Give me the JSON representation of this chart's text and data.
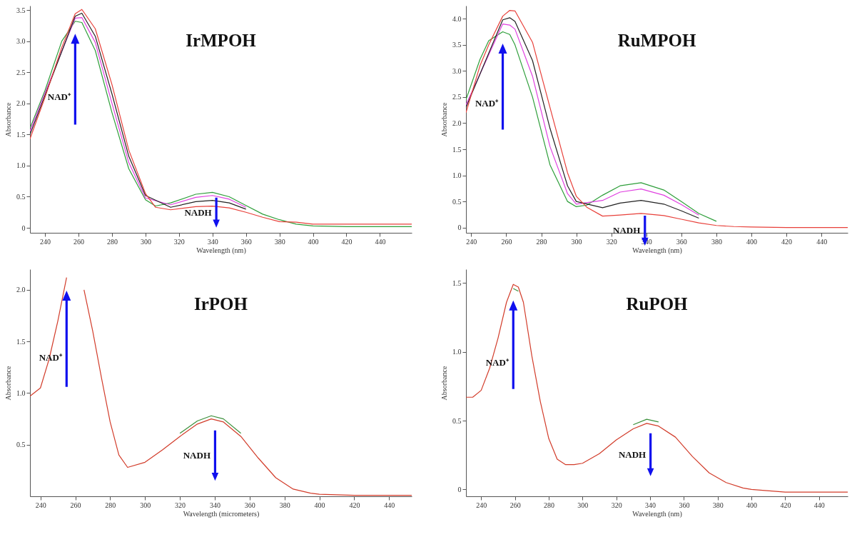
{
  "chart_data": [
    {
      "type": "line",
      "title": "IrMPOH",
      "xlabel": "Wavelength (nm)",
      "ylabel": "Absorbance",
      "x": [
        231,
        240,
        250,
        258,
        262,
        270,
        280,
        290,
        300,
        306,
        315,
        330,
        340,
        350,
        360,
        370,
        380,
        390,
        400,
        420,
        459
      ],
      "series": [
        {
          "color": "#2e9e3a",
          "values": [
            1.6,
            2.21,
            3.0,
            3.32,
            3.3,
            2.85,
            1.85,
            0.95,
            0.45,
            0.35,
            0.4,
            0.54,
            0.57,
            0.5,
            0.36,
            0.22,
            0.13,
            0.06,
            0.03,
            0.02,
            0.02
          ]
        },
        {
          "color": "#e040e0",
          "x": [
            231,
            240,
            258,
            262,
            270,
            280,
            290,
            300,
            315,
            330,
            340,
            350,
            360
          ],
          "values": [
            1.55,
            2.17,
            3.37,
            3.38,
            2.98,
            2.0,
            1.05,
            0.48,
            0.37,
            0.49,
            0.52,
            0.46,
            0.33
          ]
        },
        {
          "color": "#222222",
          "x": [
            231,
            240,
            258,
            262,
            270,
            280,
            290,
            300,
            315,
            330,
            340,
            350,
            360
          ],
          "values": [
            1.5,
            2.13,
            3.4,
            3.45,
            3.08,
            2.15,
            1.15,
            0.52,
            0.33,
            0.42,
            0.44,
            0.4,
            0.3
          ]
        },
        {
          "color": "#e8403a",
          "values": [
            1.43,
            2.1,
            2.9,
            3.44,
            3.51,
            3.2,
            2.3,
            1.25,
            0.55,
            0.33,
            0.29,
            0.34,
            0.35,
            0.32,
            0.25,
            0.17,
            0.1,
            0.09,
            0.06,
            0.06,
            0.06
          ]
        }
      ],
      "xlim": [
        231,
        459
      ],
      "xticks": [
        240,
        260,
        280,
        300,
        320,
        340,
        360,
        380,
        400,
        420,
        440
      ],
      "ylim": [
        -0.08,
        3.57
      ],
      "yticks": [
        0,
        0.5,
        {
          "value": 1,
          "label": "1.0"
        },
        1.5,
        {
          "value": 2,
          "label": "2.0"
        },
        2.5,
        {
          "value": 3,
          "label": "3.0"
        },
        3.5
      ],
      "annotations": [
        "NAD⁺",
        "NADH"
      ]
    },
    {
      "type": "line",
      "title": "RuMPOH",
      "xlabel": "Wavelength (nm)",
      "ylabel": "Absorbance",
      "x": [
        237,
        245,
        250,
        258,
        262,
        265,
        275,
        285,
        295,
        300,
        306,
        315,
        325,
        337,
        350,
        360,
        370,
        380,
        390,
        400,
        420,
        455
      ],
      "series": [
        {
          "color": "#2e9e3a",
          "x": [
            237,
            245,
            250,
            258,
            262,
            265,
            275,
            285,
            295,
            300,
            306,
            315,
            325,
            337,
            350,
            360,
            370,
            380
          ],
          "values": [
            2.45,
            3.22,
            3.58,
            3.75,
            3.7,
            3.5,
            2.5,
            1.2,
            0.5,
            0.4,
            0.43,
            0.62,
            0.8,
            0.86,
            0.72,
            0.5,
            0.27,
            0.12
          ]
        },
        {
          "color": "#e040e0",
          "x": [
            237,
            258,
            262,
            265,
            275,
            285,
            295,
            300,
            315,
            325,
            337,
            350,
            360,
            370
          ],
          "values": [
            2.35,
            3.9,
            3.88,
            3.8,
            2.9,
            1.55,
            0.65,
            0.45,
            0.52,
            0.68,
            0.74,
            0.62,
            0.44,
            0.24
          ]
        },
        {
          "color": "#222222",
          "x": [
            237,
            258,
            262,
            265,
            275,
            285,
            295,
            300,
            315,
            325,
            337,
            350,
            360,
            370
          ],
          "values": [
            2.3,
            3.98,
            4.02,
            3.95,
            3.2,
            1.9,
            0.8,
            0.5,
            0.38,
            0.47,
            0.52,
            0.45,
            0.32,
            0.18
          ]
        },
        {
          "color": "#e8403a",
          "values": [
            2.2,
            3.1,
            3.5,
            4.05,
            4.16,
            4.15,
            3.55,
            2.3,
            1.05,
            0.6,
            0.39,
            0.22,
            0.24,
            0.27,
            0.23,
            0.16,
            0.09,
            0.04,
            0.02,
            0.01,
            0,
            0
          ]
        }
      ],
      "xlim": [
        237,
        455
      ],
      "xticks": [
        240,
        260,
        280,
        300,
        320,
        340,
        360,
        380,
        400,
        420,
        440
      ],
      "ylim": [
        -0.1,
        4.25
      ],
      "yticks": [
        0,
        0.5,
        {
          "value": 1,
          "label": "1.0"
        },
        1.5,
        {
          "value": 2,
          "label": "2.0"
        },
        2.5,
        {
          "value": 3,
          "label": "3.0"
        },
        3.5,
        {
          "value": 4,
          "label": "4.0"
        }
      ],
      "annotations": [
        "NAD⁺",
        "NADH"
      ]
    },
    {
      "type": "line",
      "title": "IrPOH",
      "xlabel": "Wavelength (micrometers)",
      "ylabel": "Absorbance",
      "x": [
        234,
        240,
        245,
        250,
        255,
        257,
        259,
        262,
        265,
        270,
        275,
        280,
        285,
        290,
        300,
        310,
        320,
        330,
        338,
        345,
        355,
        365,
        375,
        385,
        395,
        400,
        420,
        453
      ],
      "series": [
        {
          "color": "#3a8f3a",
          "x": [
            320,
            330,
            338,
            345,
            355
          ],
          "values": [
            0.61,
            0.73,
            0.78,
            0.75,
            0.61
          ]
        },
        {
          "color": "#d23c2a",
          "values": [
            0.97,
            1.05,
            1.33,
            1.7,
            2.12,
            null,
            null,
            null,
            2.0,
            1.6,
            1.15,
            0.72,
            0.4,
            0.28,
            0.33,
            0.45,
            0.58,
            0.7,
            0.75,
            0.72,
            0.58,
            0.37,
            0.18,
            0.07,
            0.03,
            0.02,
            0.01,
            0.01
          ]
        }
      ],
      "xlim": [
        234,
        453
      ],
      "xticks": [
        240,
        260,
        280,
        300,
        320,
        340,
        360,
        380,
        400,
        420,
        440
      ],
      "ylim": [
        0,
        2.2
      ],
      "yticks": [
        0.5,
        {
          "value": 1,
          "label": "1.0"
        },
        1.5,
        {
          "value": 2,
          "label": "2.0"
        }
      ],
      "annotations": [
        "NAD⁺",
        "NADH"
      ]
    },
    {
      "type": "line",
      "title": "RuPOH",
      "xlabel": "Wavelength (nm)",
      "ylabel": "Absorbance",
      "x": [
        231,
        235,
        240,
        245,
        250,
        255,
        259,
        262,
        265,
        270,
        275,
        280,
        285,
        290,
        295,
        300,
        310,
        320,
        330,
        338,
        345,
        355,
        365,
        375,
        385,
        395,
        400,
        420,
        457
      ],
      "series": [
        {
          "color": "#3a8f3a",
          "x": [
            259,
            262,
            290,
            330,
            338,
            345
          ],
          "values": [
            1.46,
            1.44,
            null,
            0.47,
            0.51,
            0.49
          ]
        },
        {
          "color": "#d23c2a",
          "values": [
            0.67,
            0.67,
            0.72,
            0.88,
            1.1,
            1.36,
            1.49,
            1.47,
            1.36,
            0.97,
            0.64,
            0.37,
            0.22,
            0.18,
            0.18,
            0.19,
            0.26,
            0.36,
            0.44,
            0.48,
            0.46,
            0.38,
            0.24,
            0.12,
            0.05,
            0.01,
            0.0,
            -0.02,
            -0.02
          ]
        }
      ],
      "xlim": [
        231,
        457
      ],
      "xticks": [
        240,
        260,
        280,
        300,
        320,
        340,
        360,
        380,
        400,
        420,
        440
      ],
      "ylim": [
        -0.05,
        1.6
      ],
      "yticks": [
        0,
        0.5,
        {
          "value": 1,
          "label": "1.0"
        },
        1.5
      ],
      "annotations": [
        "NAD⁺",
        "NADH"
      ]
    }
  ]
}
